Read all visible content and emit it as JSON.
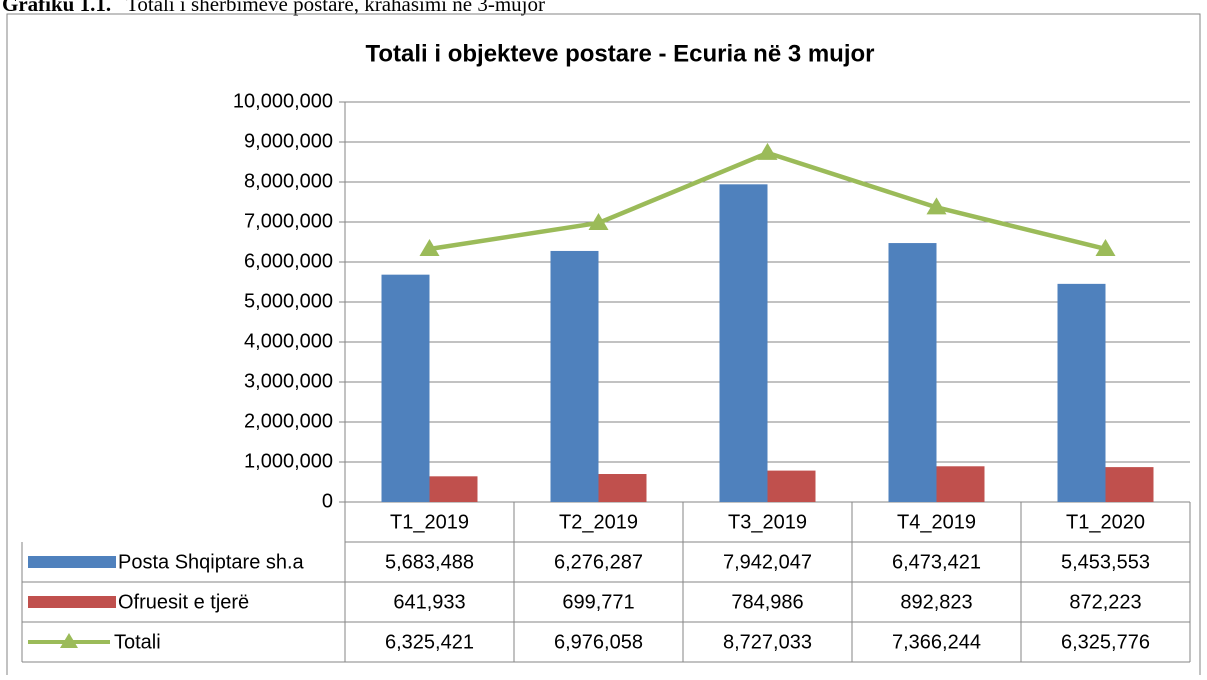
{
  "caption": {
    "label": "Grafiku 1.1.",
    "text": "Totali i shërbimeve postare, krahasimi në 3-mujor"
  },
  "chart_data": {
    "type": "bar",
    "title": "Totali i objekteve postare - Ecuria në 3 mujor",
    "categories": [
      "T1_2019",
      "T2_2019",
      "T3_2019",
      "T4_2019",
      "T1_2020"
    ],
    "series": [
      {
        "name": "Posta Shqiptare sh.a",
        "color": "#4f81bd",
        "type": "bar",
        "values": [
          5683488,
          6276287,
          7942047,
          6473421,
          5453553
        ],
        "value_labels": [
          "5,683,488",
          "6,276,287",
          "7,942,047",
          "6,473,421",
          "5,453,553"
        ]
      },
      {
        "name": "Ofruesit e tjerë",
        "color": "#c0504d",
        "type": "bar",
        "values": [
          641933,
          699771,
          784986,
          892823,
          872223
        ],
        "value_labels": [
          "641,933",
          "699,771",
          "784,986",
          "892,823",
          "872,223"
        ]
      },
      {
        "name": "Totali",
        "color": "#9bbb59",
        "type": "line",
        "values": [
          6325421,
          6976058,
          8727033,
          7366244,
          6325776
        ],
        "value_labels": [
          "6,325,421",
          "6,976,058",
          "8,727,033",
          "7,366,244",
          "6,325,776"
        ]
      }
    ],
    "ylim": [
      0,
      10000000
    ],
    "yticks": [
      0,
      {
        "value": 1000000,
        "label": "1,000,000"
      },
      {
        "value": 2000000,
        "label": "2,000,000"
      },
      {
        "value": 3000000,
        "label": "3,000,000"
      },
      {
        "value": 4000000,
        "label": "4,000,000"
      },
      {
        "value": 5000000,
        "label": "5,000,000"
      },
      {
        "value": 6000000,
        "label": "6,000,000"
      },
      {
        "value": 7000000,
        "label": "7,000,000"
      },
      {
        "value": 8000000,
        "label": "8,000,000"
      },
      {
        "value": 9000000,
        "label": "9,000,000"
      },
      {
        "value": 10000000,
        "label": "10,000,000"
      }
    ],
    "grid": true
  }
}
